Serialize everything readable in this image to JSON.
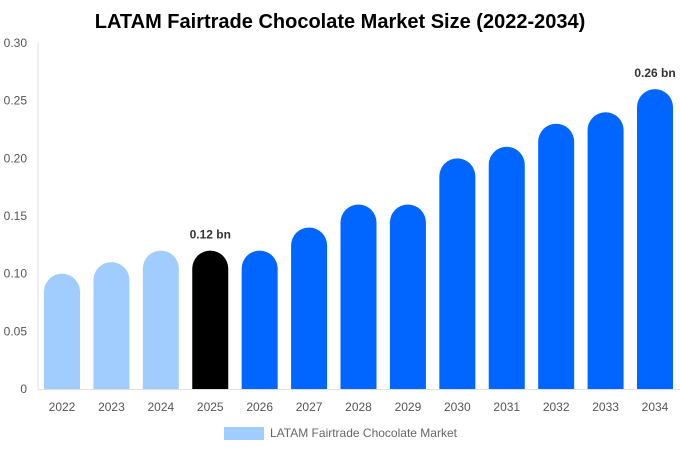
{
  "chart_data": {
    "type": "bar",
    "title": "LATAM Fairtrade Chocolate Market Size (2022-2034)",
    "xlabel": "",
    "ylabel": "",
    "categories": [
      "2022",
      "2023",
      "2024",
      "2025",
      "2026",
      "2027",
      "2028",
      "2029",
      "2030",
      "2031",
      "2032",
      "2033",
      "2034"
    ],
    "series": [
      {
        "name": "LATAM Fairtrade Chocolate Market",
        "values": [
          0.1,
          0.11,
          0.12,
          0.12,
          0.12,
          0.14,
          0.16,
          0.16,
          0.2,
          0.21,
          0.23,
          0.24,
          0.26
        ]
      }
    ],
    "bar_colors": [
      "#A0CDFD",
      "#A0CDFD",
      "#A0CDFD",
      "#000000",
      "#0066FF",
      "#0066FF",
      "#0066FF",
      "#0066FF",
      "#0066FF",
      "#0066FF",
      "#0066FF",
      "#0066FF",
      "#0066FF"
    ],
    "ylim": [
      0,
      0.3
    ],
    "yticks": [
      "0",
      "0.05",
      "0.10",
      "0.15",
      "0.20",
      "0.25",
      "0.30"
    ],
    "data_labels": [
      {
        "category": "2025",
        "text": "0.12 bn"
      },
      {
        "category": "2034",
        "text": "0.26 bn"
      }
    ],
    "legend": {
      "position": "bottom",
      "color": "#A0CDFD"
    },
    "grid": false
  }
}
